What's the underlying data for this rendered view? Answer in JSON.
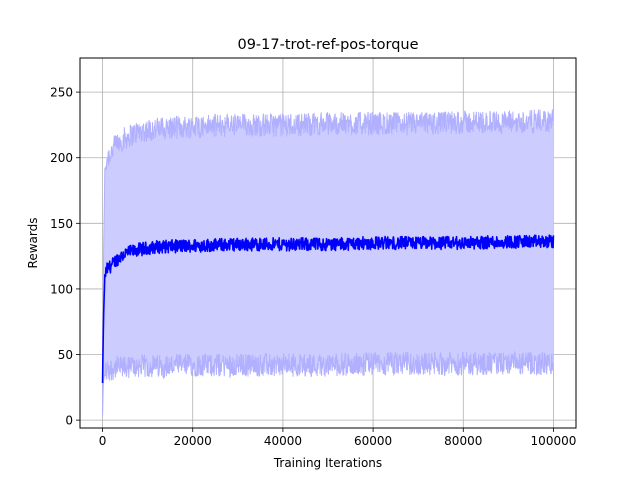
{
  "figure": {
    "background": "#ffffff"
  },
  "chart_data": {
    "type": "line",
    "title": "09-17-trot-ref-pos-torque",
    "xlabel": "Training Iterations",
    "ylabel": "Rewards",
    "xlim": [
      -5000,
      105000
    ],
    "ylim": [
      -6,
      276
    ],
    "x_ticks": [
      0,
      20000,
      40000,
      60000,
      80000,
      100000
    ],
    "x_tick_labels": [
      "0",
      "20000",
      "40000",
      "60000",
      "80000",
      "100000"
    ],
    "y_ticks": [
      0,
      50,
      100,
      150,
      200,
      250
    ],
    "y_tick_labels": [
      "0",
      "50",
      "100",
      "150",
      "200",
      "250"
    ],
    "grid": true,
    "legend": "none",
    "colors": {
      "mean_line": "#0000ff",
      "band_fill": "#ccccff",
      "band_edges": "#b0b0ff",
      "grid": "#b0b0b0"
    },
    "series": [
      {
        "role": "mean",
        "x": [
          0,
          200,
          500,
          1000,
          2000,
          3000,
          5000,
          8000,
          12000,
          20000,
          30000,
          40000,
          50000,
          60000,
          70000,
          80000,
          90000,
          100000
        ],
        "values": [
          28,
          75,
          110,
          115,
          118,
          122,
          127,
          130,
          132,
          133,
          134,
          134,
          134,
          135,
          135,
          135,
          136,
          136
        ]
      },
      {
        "role": "upper_bound",
        "x": [
          0,
          200,
          500,
          1000,
          2000,
          3000,
          5000,
          8000,
          12000,
          20000,
          30000,
          40000,
          50000,
          60000,
          70000,
          80000,
          90000,
          100000
        ],
        "values": [
          5,
          120,
          190,
          200,
          205,
          210,
          215,
          220,
          222,
          224,
          225,
          225,
          226,
          226,
          226,
          227,
          227,
          228
        ]
      },
      {
        "role": "lower_bound",
        "x": [
          0,
          200,
          500,
          1000,
          2000,
          3000,
          5000,
          8000,
          12000,
          20000,
          30000,
          40000,
          50000,
          60000,
          70000,
          80000,
          90000,
          100000
        ],
        "values": [
          3,
          30,
          35,
          38,
          39,
          40,
          40,
          41,
          41,
          42,
          42,
          42,
          42,
          43,
          43,
          43,
          43,
          43
        ]
      }
    ],
    "noise": {
      "mean": 5,
      "bound": 9
    }
  }
}
